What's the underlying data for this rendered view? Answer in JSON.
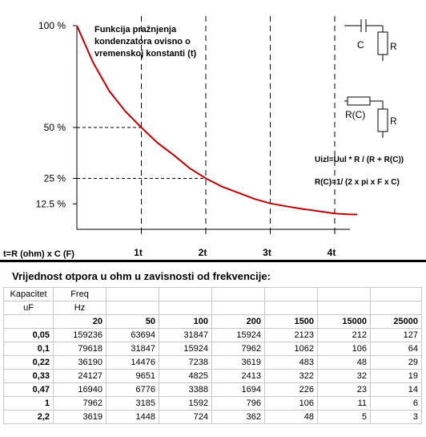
{
  "chart_data": {
    "type": "line",
    "title_lines": [
      "Funkcija pražnjenja",
      "kondenzatora ovisno o",
      "vremenskoj konstanti (t)"
    ],
    "xlabel": "t=R (ohm) x C (F)",
    "x_ticks": [
      {
        "value": 1,
        "label": "1t"
      },
      {
        "value": 2,
        "label": "2t"
      },
      {
        "value": 3,
        "label": "3t"
      },
      {
        "value": 4,
        "label": "4t"
      }
    ],
    "y_ticks": [
      {
        "value": 100,
        "label": "100 %"
      },
      {
        "value": 50,
        "label": "50 %"
      },
      {
        "value": 25,
        "label": "25 %"
      },
      {
        "value": 12.5,
        "label": "12.5 %"
      }
    ],
    "xlim": [
      0,
      4.35
    ],
    "ylim": [
      0,
      100
    ],
    "series": [
      {
        "color": "#c00000",
        "x": [
          0,
          0.25,
          0.5,
          0.75,
          1,
          1.25,
          1.5,
          1.75,
          2,
          2.25,
          2.5,
          2.75,
          3,
          3.25,
          3.5,
          3.75,
          4,
          4.2,
          4.35
        ],
        "y": [
          100,
          82,
          68,
          58,
          50,
          42.5,
          36.5,
          30,
          25,
          21,
          18,
          15,
          12.7,
          11.3,
          10,
          8.9,
          7.8,
          7.4,
          7.3
        ]
      }
    ],
    "guides": [
      {
        "x": 1,
        "y": 50
      },
      {
        "x": 2,
        "y": 25
      }
    ],
    "circuit_labels": {
      "c": "C",
      "r1": "R",
      "rc": "R(C)",
      "r2": "R"
    },
    "formulas": [
      "Uizl=Uul * R / (R + R(C))",
      "R(C)=1/ (2 x pi x F x C)"
    ]
  },
  "table": {
    "title": "Vrijednost otpora u ohm u zavisnosti od frekvencije:",
    "header_row1": [
      "Kapacitet",
      "Freq"
    ],
    "header_row2": [
      "uF",
      "Hz"
    ],
    "frequencies": [
      "20",
      "50",
      "100",
      "200",
      "1500",
      "15000",
      "25000"
    ],
    "rows": [
      {
        "cap": "0,05",
        "values": [
          "159236",
          "63694",
          "31847",
          "15924",
          "2123",
          "212",
          "127"
        ]
      },
      {
        "cap": "0,1",
        "values": [
          "79618",
          "31847",
          "15924",
          "7962",
          "1062",
          "106",
          "64"
        ]
      },
      {
        "cap": "0,22",
        "values": [
          "36190",
          "14476",
          "7238",
          "3619",
          "483",
          "48",
          "29"
        ]
      },
      {
        "cap": "0,33",
        "values": [
          "24127",
          "9651",
          "4825",
          "2413",
          "322",
          "32",
          "19"
        ]
      },
      {
        "cap": "0,47",
        "values": [
          "16940",
          "6776",
          "3388",
          "1694",
          "226",
          "23",
          "14"
        ]
      },
      {
        "cap": "1",
        "values": [
          "7962",
          "3185",
          "1592",
          "796",
          "106",
          "11",
          "6"
        ]
      },
      {
        "cap": "2,2",
        "values": [
          "3619",
          "1448",
          "724",
          "362",
          "48",
          "5",
          "3"
        ]
      }
    ]
  }
}
